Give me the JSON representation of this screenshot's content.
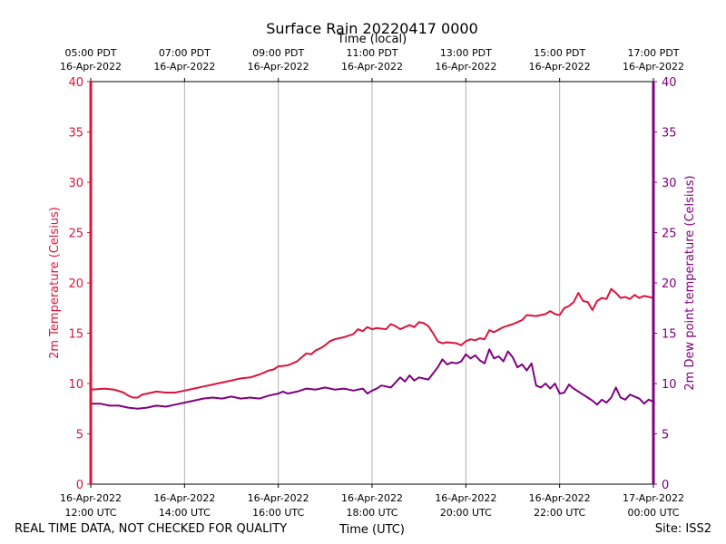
{
  "chart_data": {
    "type": "line",
    "title": "Surface Rain 20220417 0000",
    "xlabel": "Time (UTC)",
    "xlabel_top": "Time (local)",
    "ylabel_left": "2m Temperature (Celsius)",
    "ylabel_right": "2m Dew point temperature (Celsius)",
    "ylim": [
      0,
      40
    ],
    "yticks": [
      "0",
      "5",
      "10",
      "15",
      "20",
      "25",
      "30",
      "35",
      "40"
    ],
    "xlim_hours": [
      0,
      12
    ],
    "bottom_ticks": [
      {
        "date": "16-Apr-2022",
        "time": "12:00 UTC"
      },
      {
        "date": "16-Apr-2022",
        "time": "14:00 UTC"
      },
      {
        "date": "16-Apr-2022",
        "time": "16:00 UTC"
      },
      {
        "date": "16-Apr-2022",
        "time": "18:00 UTC"
      },
      {
        "date": "16-Apr-2022",
        "time": "20:00 UTC"
      },
      {
        "date": "16-Apr-2022",
        "time": "22:00 UTC"
      },
      {
        "date": "17-Apr-2022",
        "time": "00:00 UTC"
      }
    ],
    "top_ticks": [
      {
        "time": "05:00 PDT",
        "date": "16-Apr-2022"
      },
      {
        "time": "07:00 PDT",
        "date": "16-Apr-2022"
      },
      {
        "time": "09:00 PDT",
        "date": "16-Apr-2022"
      },
      {
        "time": "11:00 PDT",
        "date": "16-Apr-2022"
      },
      {
        "time": "13:00 PDT",
        "date": "16-Apr-2022"
      },
      {
        "time": "15:00 PDT",
        "date": "16-Apr-2022"
      },
      {
        "time": "17:00 PDT",
        "date": "16-Apr-2022"
      }
    ],
    "grid": true,
    "series": [
      {
        "name": "2m Temperature",
        "color": "#dc143c",
        "axis": "left",
        "points": [
          [
            0.0,
            9.4
          ],
          [
            0.3,
            9.5
          ],
          [
            0.5,
            9.4
          ],
          [
            0.7,
            9.1
          ],
          [
            0.8,
            8.8
          ],
          [
            0.9,
            8.6
          ],
          [
            1.0,
            8.6
          ],
          [
            1.1,
            8.9
          ],
          [
            1.2,
            9.0
          ],
          [
            1.4,
            9.2
          ],
          [
            1.6,
            9.1
          ],
          [
            1.8,
            9.1
          ],
          [
            2.0,
            9.3
          ],
          [
            2.2,
            9.5
          ],
          [
            2.4,
            9.7
          ],
          [
            2.6,
            9.9
          ],
          [
            2.8,
            10.1
          ],
          [
            3.0,
            10.3
          ],
          [
            3.2,
            10.5
          ],
          [
            3.4,
            10.6
          ],
          [
            3.6,
            10.9
          ],
          [
            3.7,
            11.1
          ],
          [
            3.8,
            11.3
          ],
          [
            3.9,
            11.4
          ],
          [
            4.0,
            11.7
          ],
          [
            4.2,
            11.8
          ],
          [
            4.4,
            12.2
          ],
          [
            4.5,
            12.6
          ],
          [
            4.6,
            13.0
          ],
          [
            4.7,
            12.9
          ],
          [
            4.8,
            13.3
          ],
          [
            4.9,
            13.5
          ],
          [
            5.0,
            13.8
          ],
          [
            5.1,
            14.2
          ],
          [
            5.2,
            14.4
          ],
          [
            5.4,
            14.6
          ],
          [
            5.6,
            14.9
          ],
          [
            5.7,
            15.4
          ],
          [
            5.8,
            15.2
          ],
          [
            5.9,
            15.6
          ],
          [
            6.0,
            15.4
          ],
          [
            6.1,
            15.5
          ],
          [
            6.3,
            15.4
          ],
          [
            6.4,
            15.9
          ],
          [
            6.5,
            15.7
          ],
          [
            6.6,
            15.4
          ],
          [
            6.8,
            15.8
          ],
          [
            6.9,
            15.6
          ],
          [
            7.0,
            16.1
          ],
          [
            7.1,
            16.0
          ],
          [
            7.2,
            15.7
          ],
          [
            7.3,
            15.0
          ],
          [
            7.4,
            14.2
          ],
          [
            7.5,
            14.0
          ],
          [
            7.6,
            14.1
          ],
          [
            7.8,
            14.0
          ],
          [
            7.9,
            13.8
          ],
          [
            8.0,
            14.2
          ],
          [
            8.1,
            14.4
          ],
          [
            8.2,
            14.3
          ],
          [
            8.3,
            14.5
          ],
          [
            8.4,
            14.4
          ],
          [
            8.5,
            15.3
          ],
          [
            8.6,
            15.1
          ],
          [
            8.8,
            15.6
          ],
          [
            9.0,
            15.9
          ],
          [
            9.1,
            16.1
          ],
          [
            9.2,
            16.3
          ],
          [
            9.3,
            16.8
          ],
          [
            9.5,
            16.7
          ],
          [
            9.7,
            16.9
          ],
          [
            9.8,
            17.2
          ],
          [
            9.9,
            16.9
          ],
          [
            10.0,
            16.8
          ],
          [
            10.1,
            17.5
          ],
          [
            10.2,
            17.7
          ],
          [
            10.3,
            18.1
          ],
          [
            10.4,
            19.0
          ],
          [
            10.5,
            18.2
          ],
          [
            10.6,
            18.1
          ],
          [
            10.7,
            17.3
          ],
          [
            10.8,
            18.2
          ],
          [
            10.9,
            18.5
          ],
          [
            11.0,
            18.4
          ],
          [
            11.1,
            19.4
          ],
          [
            11.2,
            19.0
          ],
          [
            11.3,
            18.5
          ],
          [
            11.4,
            18.6
          ],
          [
            11.5,
            18.4
          ],
          [
            11.6,
            18.8
          ],
          [
            11.7,
            18.5
          ],
          [
            11.8,
            18.7
          ],
          [
            12.0,
            18.5
          ]
        ]
      },
      {
        "name": "2m Dew point temperature",
        "color": "#800080",
        "axis": "right",
        "points": [
          [
            0.0,
            8.0
          ],
          [
            0.2,
            8.0
          ],
          [
            0.4,
            7.8
          ],
          [
            0.6,
            7.8
          ],
          [
            0.8,
            7.6
          ],
          [
            1.0,
            7.5
          ],
          [
            1.2,
            7.6
          ],
          [
            1.4,
            7.8
          ],
          [
            1.6,
            7.7
          ],
          [
            1.8,
            7.9
          ],
          [
            2.0,
            8.1
          ],
          [
            2.2,
            8.3
          ],
          [
            2.4,
            8.5
          ],
          [
            2.6,
            8.6
          ],
          [
            2.8,
            8.5
          ],
          [
            3.0,
            8.7
          ],
          [
            3.2,
            8.5
          ],
          [
            3.4,
            8.6
          ],
          [
            3.6,
            8.5
          ],
          [
            3.8,
            8.8
          ],
          [
            4.0,
            9.0
          ],
          [
            4.1,
            9.2
          ],
          [
            4.2,
            9.0
          ],
          [
            4.4,
            9.2
          ],
          [
            4.6,
            9.5
          ],
          [
            4.8,
            9.4
          ],
          [
            5.0,
            9.6
          ],
          [
            5.2,
            9.4
          ],
          [
            5.4,
            9.5
          ],
          [
            5.6,
            9.3
          ],
          [
            5.8,
            9.5
          ],
          [
            5.9,
            9.0
          ],
          [
            6.0,
            9.3
          ],
          [
            6.1,
            9.5
          ],
          [
            6.2,
            9.8
          ],
          [
            6.4,
            9.6
          ],
          [
            6.5,
            10.1
          ],
          [
            6.6,
            10.6
          ],
          [
            6.7,
            10.2
          ],
          [
            6.8,
            10.8
          ],
          [
            6.9,
            10.3
          ],
          [
            7.0,
            10.6
          ],
          [
            7.2,
            10.4
          ],
          [
            7.3,
            11.0
          ],
          [
            7.4,
            11.6
          ],
          [
            7.5,
            12.4
          ],
          [
            7.6,
            11.9
          ],
          [
            7.7,
            12.1
          ],
          [
            7.8,
            12.0
          ],
          [
            7.9,
            12.2
          ],
          [
            8.0,
            12.9
          ],
          [
            8.1,
            12.5
          ],
          [
            8.2,
            12.8
          ],
          [
            8.3,
            12.3
          ],
          [
            8.4,
            12.0
          ],
          [
            8.5,
            13.4
          ],
          [
            8.6,
            12.5
          ],
          [
            8.7,
            12.7
          ],
          [
            8.8,
            12.2
          ],
          [
            8.9,
            13.2
          ],
          [
            9.0,
            12.6
          ],
          [
            9.1,
            11.6
          ],
          [
            9.2,
            11.9
          ],
          [
            9.3,
            11.3
          ],
          [
            9.4,
            12.0
          ],
          [
            9.5,
            9.8
          ],
          [
            9.6,
            9.6
          ],
          [
            9.7,
            10.0
          ],
          [
            9.8,
            9.5
          ],
          [
            9.9,
            10.0
          ],
          [
            10.0,
            9.0
          ],
          [
            10.1,
            9.1
          ],
          [
            10.2,
            9.9
          ],
          [
            10.3,
            9.5
          ],
          [
            10.4,
            9.2
          ],
          [
            10.5,
            8.9
          ],
          [
            10.6,
            8.6
          ],
          [
            10.7,
            8.3
          ],
          [
            10.8,
            7.9
          ],
          [
            10.9,
            8.4
          ],
          [
            11.0,
            8.1
          ],
          [
            11.1,
            8.6
          ],
          [
            11.2,
            9.6
          ],
          [
            11.3,
            8.6
          ],
          [
            11.4,
            8.4
          ],
          [
            11.5,
            8.9
          ],
          [
            11.6,
            8.7
          ],
          [
            11.7,
            8.5
          ],
          [
            11.8,
            8.0
          ],
          [
            11.9,
            8.4
          ],
          [
            12.0,
            8.2
          ]
        ]
      }
    ]
  },
  "footer": {
    "left": "REAL TIME DATA, NOT CHECKED FOR QUALITY",
    "right": "Site: ISS2"
  }
}
